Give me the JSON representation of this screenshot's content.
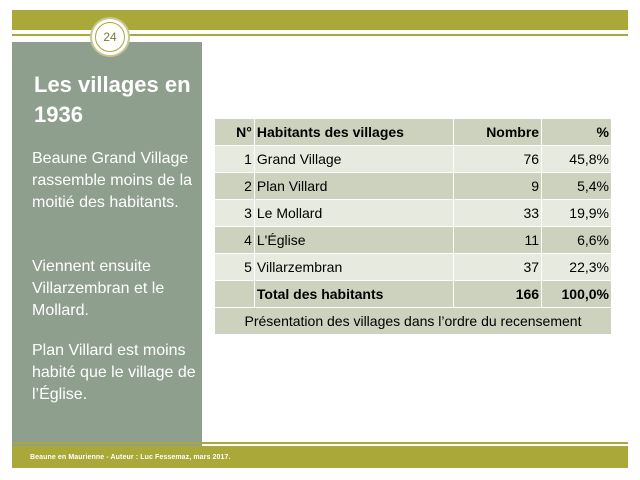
{
  "slide": {
    "page_number": "24",
    "title": "Les villages en 1936",
    "paragraphs": [
      "Beaune Grand Village rassemble moins de la moitié des habitants.",
      "Viennent ensuite Villarzembran et le Mollard.",
      "Plan Villard est moins habité que le village de l’Église."
    ]
  },
  "table": {
    "headers": [
      "N°",
      "Habitants des villages",
      "Nombre",
      "%"
    ],
    "rows": [
      {
        "n": "1",
        "village": "Grand Village",
        "nombre": "76",
        "pct": "45,8%"
      },
      {
        "n": "2",
        "village": "Plan Villard",
        "nombre": "9",
        "pct": "5,4%"
      },
      {
        "n": "3",
        "village": "Le Mollard",
        "nombre": "33",
        "pct": "19,9%"
      },
      {
        "n": "4",
        "village": "L'Église",
        "nombre": "11",
        "pct": "6,6%"
      },
      {
        "n": "5",
        "village": "Villarzembran",
        "nombre": "37",
        "pct": "22,3%"
      }
    ],
    "total": {
      "label": "Total des habitants",
      "nombre": "166",
      "pct": "100,0%"
    },
    "caption": "Présentation des villages dans l’ordre du recensement"
  },
  "footer": {
    "text": "Beaune en Maurienne - Auteur : Luc Fessemaz, mars 2017."
  },
  "colors": {
    "accent": "#a9a838",
    "sidebar": "#8f9f8e",
    "table_dark": "#ccd2bd",
    "table_light": "#e7ebdf"
  }
}
